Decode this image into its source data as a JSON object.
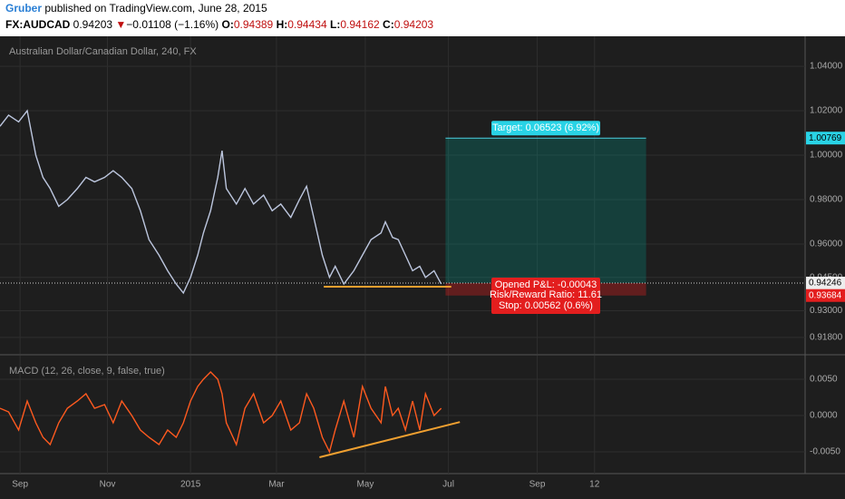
{
  "header": {
    "author": "Gruber",
    "published": "published on TradingView.com, June 28, 2015",
    "symbol": "FX:AUDCAD",
    "last": "0.94203",
    "arrow": "▼",
    "change": "−0.01108 (−1.16%)",
    "ohlc": [
      {
        "key": "O:",
        "value": "0.94389"
      },
      {
        "key": "H:",
        "value": "0.94434"
      },
      {
        "key": "L:",
        "value": "0.94162"
      },
      {
        "key": "C:",
        "value": "0.94203"
      }
    ]
  },
  "chart_data": [
    {
      "type": "line",
      "title": "Australian Dollar/Canadian Dollar, 240, FX",
      "x": [
        0,
        6,
        13,
        19,
        25,
        30,
        35,
        41,
        47,
        54,
        60,
        66,
        73,
        79,
        85,
        92,
        98,
        104,
        111,
        117,
        123,
        128,
        133,
        138,
        142,
        147,
        152,
        155,
        158,
        165,
        171,
        177,
        184,
        190,
        196,
        203,
        209,
        214,
        219,
        225,
        230,
        234,
        240,
        247,
        253,
        259,
        266,
        269,
        274,
        278,
        283,
        288,
        293,
        297,
        303,
        308
      ],
      "series": [
        {
          "color": "#bcc6de",
          "values": [
            1.013,
            1.018,
            1.015,
            1.02,
            1.0,
            0.99,
            0.985,
            0.977,
            0.98,
            0.985,
            0.99,
            0.988,
            0.99,
            0.993,
            0.99,
            0.985,
            0.975,
            0.962,
            0.955,
            0.948,
            0.942,
            0.938,
            0.945,
            0.955,
            0.965,
            0.975,
            0.99,
            1.002,
            0.985,
            0.978,
            0.985,
            0.978,
            0.982,
            0.975,
            0.978,
            0.972,
            0.98,
            0.986,
            0.972,
            0.955,
            0.945,
            0.95,
            0.942,
            0.948,
            0.955,
            0.962,
            0.965,
            0.97,
            0.963,
            0.962,
            0.955,
            0.948,
            0.95,
            0.945,
            0.948,
            0.942
          ]
        }
      ],
      "xlim": [
        0,
        562
      ],
      "xticks": [
        {
          "value": 14,
          "label": "Sep"
        },
        {
          "value": 75,
          "label": "Nov"
        },
        {
          "value": 133,
          "label": "2015"
        },
        {
          "value": 193,
          "label": "Mar"
        },
        {
          "value": 255,
          "label": "May"
        },
        {
          "value": 313,
          "label": "Jul"
        },
        {
          "value": 375,
          "label": "Sep"
        },
        {
          "value": 415,
          "label": "12"
        }
      ],
      "ylim": [
        0.9106,
        1.0535
      ],
      "yticks": [
        {
          "value": 1.04,
          "label": "1.04000"
        },
        {
          "value": 1.02,
          "label": "1.02000"
        },
        {
          "value": 1.0,
          "label": "1.00000"
        },
        {
          "value": 0.98,
          "label": "0.98000"
        },
        {
          "value": 0.96,
          "label": "0.96000"
        },
        {
          "value": 0.945,
          "label": "0.94500"
        },
        {
          "value": 0.93,
          "label": "0.93000"
        },
        {
          "value": 0.918,
          "label": "0.91800"
        }
      ],
      "grid": true,
      "support_line": {
        "x": [
          226,
          315
        ],
        "y": [
          0.9408,
          0.9408
        ],
        "color": "#f0a030"
      },
      "position": {
        "x": [
          311,
          451
        ],
        "entry": 0.94246,
        "target": 1.00769,
        "stop": 0.93684,
        "target_label": "Target: 0.06523 (6.92%)",
        "pnl_label": "Opened P&L: -0.00043",
        "ratio_label": "Risk/Reward Ratio: 11.61",
        "stop_label": "Stop: 0.00562 (0.6%)"
      }
    },
    {
      "type": "line",
      "title": "MACD (12, 26, close, 9, false, true)",
      "x": [
        0,
        6,
        13,
        19,
        25,
        30,
        35,
        41,
        47,
        54,
        60,
        66,
        73,
        79,
        85,
        92,
        98,
        104,
        111,
        117,
        123,
        128,
        133,
        138,
        142,
        147,
        152,
        155,
        158,
        165,
        171,
        177,
        184,
        190,
        196,
        203,
        209,
        214,
        219,
        225,
        230,
        234,
        240,
        247,
        253,
        259,
        266,
        269,
        274,
        278,
        283,
        288,
        293,
        297,
        303,
        308
      ],
      "series": [
        {
          "color": "#ff5a1f",
          "values": [
            0.001,
            0.0005,
            -0.002,
            0.002,
            -0.001,
            -0.003,
            -0.004,
            -0.001,
            0.001,
            0.002,
            0.003,
            0.001,
            0.0015,
            -0.001,
            0.002,
            0.0,
            -0.002,
            -0.003,
            -0.004,
            -0.002,
            -0.003,
            -0.001,
            0.002,
            0.004,
            0.005,
            0.006,
            0.005,
            0.003,
            -0.001,
            -0.004,
            0.001,
            0.003,
            -0.001,
            0.0,
            0.002,
            -0.002,
            -0.001,
            0.003,
            0.001,
            -0.003,
            -0.005,
            -0.002,
            0.002,
            -0.003,
            0.004,
            0.001,
            -0.001,
            0.004,
            0.0,
            0.001,
            -0.002,
            0.002,
            -0.002,
            0.003,
            0.0,
            0.001
          ]
        }
      ],
      "xlim": [
        0,
        562
      ],
      "ylim": [
        -0.008,
        0.00825
      ],
      "yticks": [
        {
          "value": 0.005,
          "label": "0.0050"
        },
        {
          "value": 0,
          "label": "0.0000"
        },
        {
          "value": -0.005,
          "label": "-0.0050"
        }
      ],
      "trend_line": {
        "x": [
          223,
          321
        ],
        "y": [
          -0.00575,
          -0.0009
        ],
        "color": "#f0a030"
      }
    }
  ]
}
